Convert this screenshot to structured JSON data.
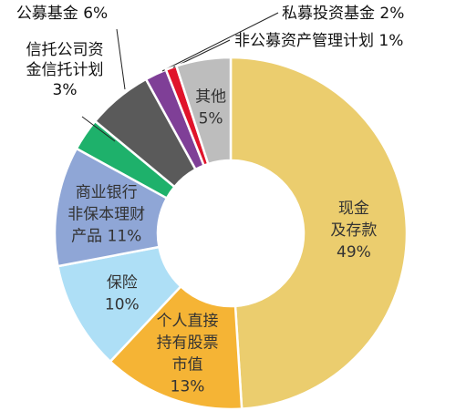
{
  "chart_data": {
    "type": "pie",
    "donut": true,
    "legend": "none",
    "slices": [
      {
        "name": "现金及存款",
        "lines": [
          "现金",
          "及存款",
          "49%"
        ],
        "value": 49,
        "color": "#EBCD6E",
        "label_pos": "inside"
      },
      {
        "name": "个人直接持有股票市值",
        "lines": [
          "个人直接",
          "持有股票",
          "市值",
          "13%"
        ],
        "value": 13,
        "color": "#F5B435",
        "label_pos": "inside"
      },
      {
        "name": "保险",
        "lines": [
          "保险",
          "10%"
        ],
        "value": 10,
        "color": "#AEDFF6",
        "label_pos": "inside"
      },
      {
        "name": "商业银行非保本理财产品",
        "lines": [
          "商业银行",
          "非保本理财",
          "产品 11%"
        ],
        "value": 11,
        "color": "#8FA6D6",
        "label_pos": "inside"
      },
      {
        "name": "信托公司资金信托计划",
        "lines": [
          "信托公司资",
          "金信托计划",
          "3%"
        ],
        "value": 3,
        "color": "#1EB16B",
        "label_pos": "outside"
      },
      {
        "name": "公募基金",
        "lines": [
          "公募基金 6%"
        ],
        "value": 6,
        "color": "#5A5A5A",
        "label_pos": "outside"
      },
      {
        "name": "私募投资基金",
        "lines": [
          "私募投资基金 2%"
        ],
        "value": 2,
        "color": "#7F3F97",
        "label_pos": "outside"
      },
      {
        "name": "非公募资产管理计划",
        "lines": [
          "非公募资产管理计划 1%"
        ],
        "value": 1,
        "color": "#E0142B",
        "label_pos": "outside"
      },
      {
        "name": "其他",
        "lines": [
          "其他",
          "5%"
        ],
        "value": 5,
        "color": "#BDBDBD",
        "label_pos": "inside"
      }
    ]
  }
}
